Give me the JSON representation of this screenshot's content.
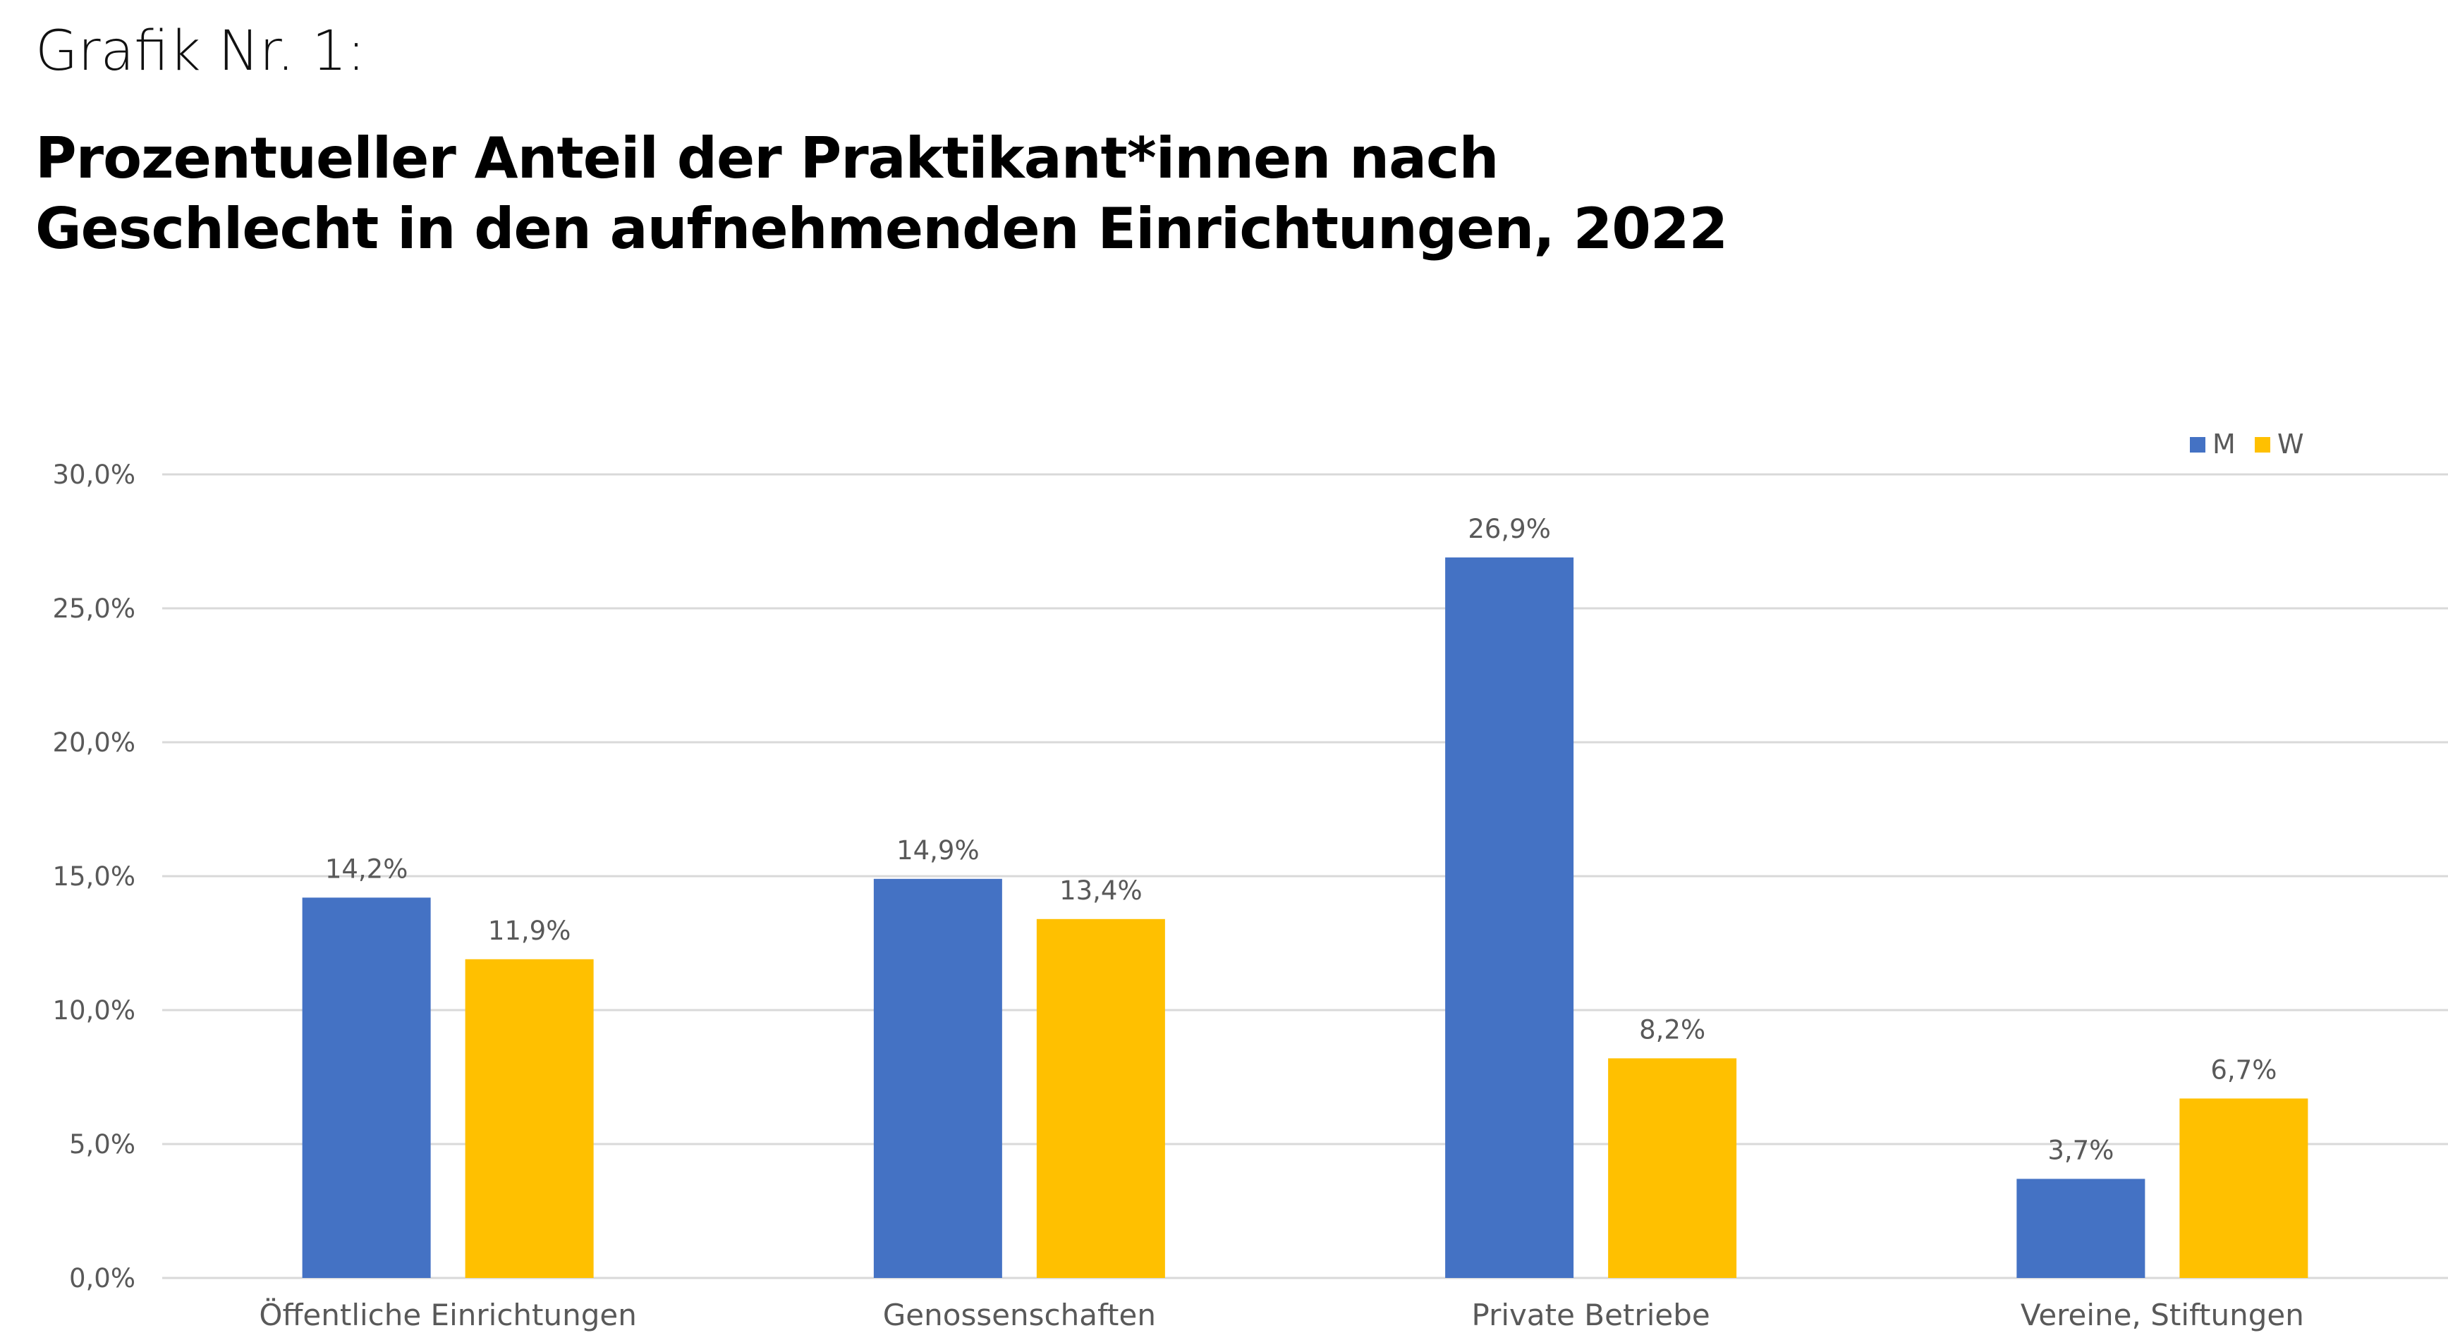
{
  "header": {
    "pretitle": "Grafik Nr. 1:",
    "title_line1": "Prozentueller Anteil der Praktikant*innen nach",
    "title_line2": "Geschlecht in den aufnehmenden Einrichtungen, 2022"
  },
  "chart_data": {
    "type": "bar",
    "title": "Prozentueller Anteil der Praktikant*innen nach Geschlecht in den aufnehmenden Einrichtungen, 2022",
    "categories": [
      "Öffentliche Einrichtungen",
      "Genossenschaften",
      "Private Betriebe",
      "Vereine, Stiftungen"
    ],
    "series": [
      {
        "name": "M",
        "color": "#4472C4",
        "values": [
          14.2,
          14.9,
          26.9,
          3.7
        ],
        "labels": [
          "14,2%",
          "14,9%",
          "26,9%",
          "3,7%"
        ]
      },
      {
        "name": "W",
        "color": "#FFC000",
        "values": [
          11.9,
          13.4,
          8.2,
          6.7
        ],
        "labels": [
          "11,9%",
          "13,4%",
          "8,2%",
          "6,7%"
        ]
      }
    ],
    "ylim": [
      0,
      30
    ],
    "yticks": [
      0,
      5,
      10,
      15,
      20,
      25,
      30
    ],
    "ytick_labels": [
      "0,0%",
      "5,0%",
      "10,0%",
      "15,0%",
      "20,0%",
      "25,0%",
      "30,0%"
    ],
    "xlabel": "",
    "ylabel": "",
    "grid": true,
    "legend": "top-right"
  }
}
